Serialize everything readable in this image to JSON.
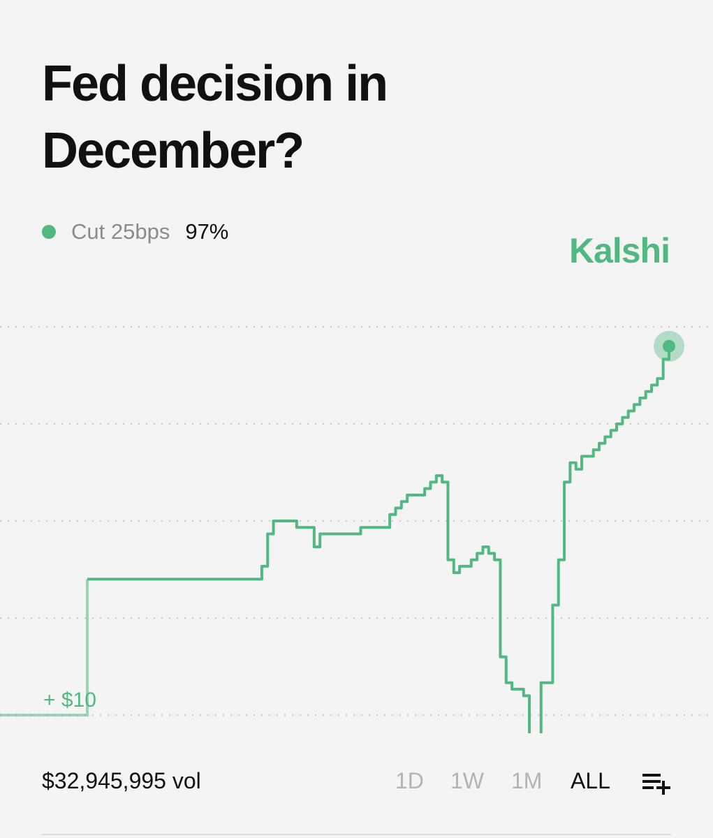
{
  "header": {
    "title": "Fed decision in December?"
  },
  "legend": {
    "label": "Cut 25bps",
    "value": "97%"
  },
  "brand": {
    "name": "Kalshi"
  },
  "colors": {
    "accent": "#52b882",
    "text": "#111111",
    "muted": "#8b8b8b",
    "grid": "#c8c8c8"
  },
  "annotation": "+ $10",
  "footer": {
    "volume": "$32,945,995 vol",
    "ranges": [
      "1D",
      "1W",
      "1M",
      "ALL"
    ],
    "active_range": "ALL",
    "add_icon": "playlist-add-icon"
  },
  "chart_data": {
    "type": "line",
    "title": "Fed decision in December?",
    "series": [
      {
        "name": "Cut 25bps",
        "current": 97,
        "x": [
          0,
          1,
          2,
          3,
          4,
          5,
          6,
          7,
          8,
          9,
          10,
          11,
          12,
          13,
          14,
          15,
          16,
          17,
          18,
          19,
          20,
          21,
          22,
          23,
          24,
          25,
          26,
          27,
          28,
          29,
          30,
          31,
          32,
          33,
          34,
          35,
          36,
          37,
          38,
          39,
          40,
          41,
          42,
          43,
          44,
          45,
          46,
          47,
          48,
          49,
          50,
          51,
          52,
          53,
          54,
          55,
          56,
          57,
          58,
          59,
          60,
          61,
          62,
          63,
          64,
          65,
          66,
          67,
          68,
          69,
          70,
          71,
          72,
          73,
          74,
          75,
          76,
          77,
          78,
          79,
          80,
          81,
          82,
          83,
          84,
          85,
          86,
          87,
          88,
          89,
          90,
          91,
          92,
          93,
          94,
          95,
          96,
          97,
          98,
          99,
          100
        ],
        "y": [
          40,
          40,
          40,
          40,
          40,
          40,
          40,
          40,
          40,
          40,
          40,
          40,
          40,
          40,
          40,
          40,
          40,
          40,
          40,
          40,
          61,
          61,
          61,
          61,
          61,
          61,
          61,
          61,
          61,
          61,
          63,
          68,
          70,
          70,
          70,
          70,
          69,
          69,
          69,
          66,
          68,
          68,
          68,
          68,
          68,
          68,
          68,
          69,
          69,
          69,
          69,
          69,
          71,
          72,
          73,
          74,
          74,
          74,
          75,
          76,
          77,
          76,
          64,
          62,
          63,
          63,
          64,
          65,
          66,
          65,
          64,
          49,
          45,
          44,
          44,
          43,
          36,
          36,
          45,
          45,
          57,
          64,
          76,
          79,
          78,
          80,
          80,
          81,
          82,
          83,
          84,
          85,
          86,
          87,
          88,
          89,
          90,
          91,
          92,
          95,
          97
        ],
        "ymin_display": 40,
        "ymax_display": 100
      }
    ],
    "grid": true,
    "legend_position": "top-left"
  }
}
